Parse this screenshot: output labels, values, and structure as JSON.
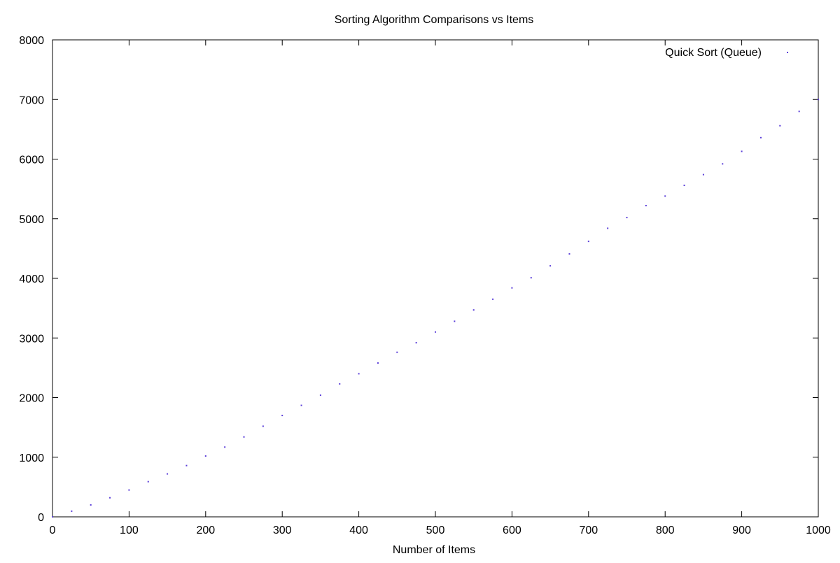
{
  "chart_data": {
    "type": "scatter",
    "title": "Sorting Algorithm Comparisons vs Items",
    "xlabel": "Number of Items",
    "ylabel": "",
    "xlim": [
      0,
      1000
    ],
    "ylim": [
      0,
      8000
    ],
    "xticks": [
      0,
      100,
      200,
      300,
      400,
      500,
      600,
      700,
      800,
      900,
      1000
    ],
    "yticks": [
      0,
      1000,
      2000,
      3000,
      4000,
      5000,
      6000,
      7000,
      8000
    ],
    "grid": false,
    "legend_position": "top-right",
    "series": [
      {
        "name": "Quick Sort (Queue)",
        "color": "#5b3fd9",
        "marker": "dot",
        "x": [
          0,
          25,
          50,
          75,
          100,
          125,
          150,
          175,
          200,
          225,
          250,
          275,
          300,
          325,
          350,
          375,
          400,
          425,
          450,
          475,
          500,
          525,
          550,
          575,
          600,
          625,
          650,
          675,
          700,
          725,
          750,
          775,
          800,
          825,
          850,
          875,
          900,
          925,
          950,
          975,
          1000
        ],
        "y": [
          0,
          95,
          200,
          320,
          450,
          590,
          720,
          860,
          1020,
          1170,
          1340,
          1520,
          1700,
          1870,
          2040,
          2230,
          2400,
          2580,
          2760,
          2920,
          3100,
          3280,
          3470,
          3650,
          3840,
          4010,
          4210,
          4410,
          4620,
          4840,
          5020,
          5220,
          5380,
          5560,
          5740,
          5920,
          6130,
          6360,
          6560,
          6800,
          7000
        ]
      }
    ]
  }
}
